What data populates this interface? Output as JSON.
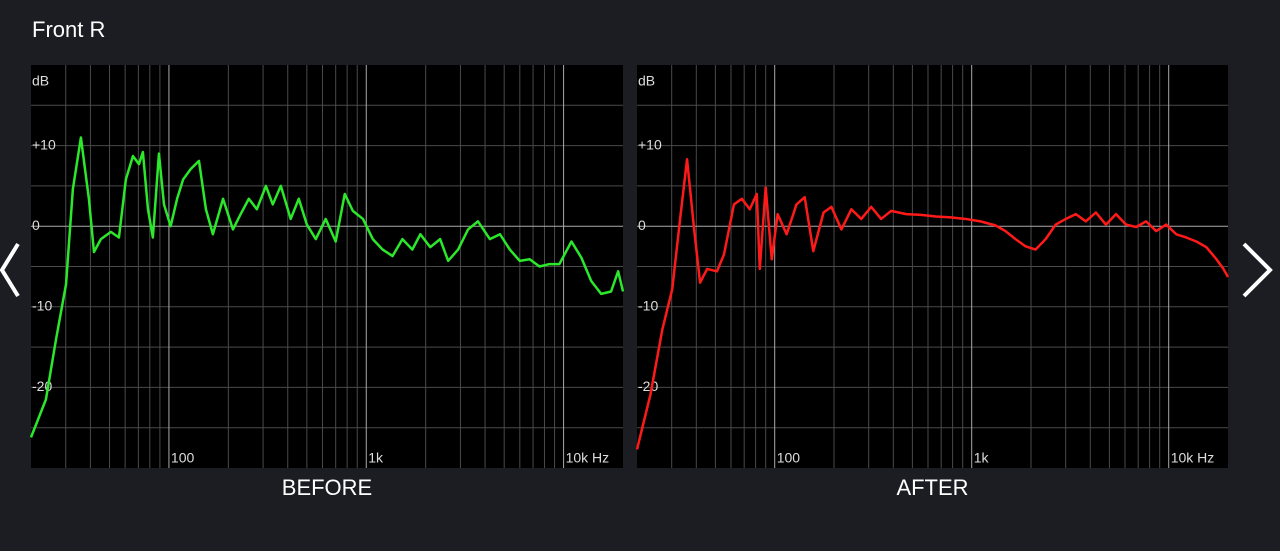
{
  "page_title": "Front R",
  "chart_data": [
    {
      "type": "line",
      "xlabel": "BEFORE",
      "yunit": "dB",
      "xscale": "log",
      "color": "#2be82b",
      "xlim": [
        20,
        20000
      ],
      "ylim": [
        -30,
        20
      ],
      "xticks": [
        100,
        {
          "value": 1000,
          "label": "1k"
        },
        {
          "value": 10000,
          "label": "10k Hz"
        }
      ],
      "xminorticks": [
        30,
        40,
        50,
        60,
        70,
        80,
        90,
        200,
        300,
        400,
        500,
        600,
        700,
        800,
        900,
        2000,
        3000,
        4000,
        5000,
        6000,
        7000,
        8000,
        9000
      ],
      "yticks": [
        {
          "value": 10,
          "label": "+10"
        },
        0,
        -10,
        -20
      ],
      "yminorticks": [
        15,
        5,
        -5,
        -15,
        -25
      ],
      "x": [
        20,
        23.8,
        26.8,
        30.1,
        32.6,
        35.8,
        39.3,
        41.7,
        45.2,
        50.8,
        55.8,
        60.5,
        65.7,
        70.5,
        73.8,
        78.3,
        82.9,
        89,
        94.4,
        102,
        110,
        118,
        129,
        142,
        154,
        167,
        188,
        211,
        231,
        254,
        279,
        310,
        336,
        369,
        414,
        455,
        500,
        555,
        623,
        700,
        778,
        855,
        962,
        1079,
        1210,
        1359,
        1525,
        1712,
        1880,
        2109,
        2367,
        2600,
        2920,
        3280,
        3680,
        4230,
        4760,
        5340,
        5990,
        6730,
        7550,
        8480,
        9520,
        10960,
        12300,
        13800,
        15500,
        17400,
        18900,
        20000
      ],
      "values": [
        -26.2,
        -21.5,
        -14,
        -7.2,
        4.6,
        11,
        3.4,
        -3.2,
        -1.6,
        -0.7,
        -1.4,
        5.8,
        8.7,
        7.7,
        9.2,
        2.1,
        -1.4,
        9,
        2.7,
        0,
        3.4,
        5.8,
        7.1,
        8.1,
        2.1,
        -1,
        3.4,
        -0.4,
        1.5,
        3.4,
        2.1,
        5,
        2.7,
        5,
        0.9,
        3.4,
        0.2,
        -1.6,
        0.9,
        -1.9,
        4,
        1.9,
        0.9,
        -1.6,
        -2.9,
        -3.7,
        -1.6,
        -2.9,
        -1,
        -2.6,
        -1.6,
        -4.3,
        -2.9,
        -0.4,
        0.6,
        -1.6,
        -1,
        -2.9,
        -4.3,
        -4.1,
        -5,
        -4.7,
        -4.7,
        -1.9,
        -3.9,
        -6.8,
        -8.4,
        -8.1,
        -5.6,
        -8.1
      ]
    },
    {
      "type": "line",
      "xlabel": "AFTER",
      "yunit": "dB",
      "xscale": "log",
      "color": "#ff1a1a",
      "xlim": [
        20,
        20000
      ],
      "ylim": [
        -30,
        20
      ],
      "xticks": [
        100,
        {
          "value": 1000,
          "label": "1k"
        },
        {
          "value": 10000,
          "label": "10k Hz"
        }
      ],
      "xminorticks": [
        30,
        40,
        50,
        60,
        70,
        80,
        90,
        200,
        300,
        400,
        500,
        600,
        700,
        800,
        900,
        2000,
        3000,
        4000,
        5000,
        6000,
        7000,
        8000,
        9000
      ],
      "yticks": [
        {
          "value": 10,
          "label": "+10"
        },
        0,
        -10,
        -20
      ],
      "yminorticks": [
        15,
        5,
        -5,
        -15,
        -25
      ],
      "x": [
        20,
        23.4,
        26.9,
        30.2,
        33.1,
        35.9,
        39,
        41.8,
        45.4,
        50.9,
        55.3,
        62.1,
        68.1,
        74.7,
        81.1,
        84,
        90,
        96.6,
        103.5,
        115,
        129,
        142,
        157,
        177,
        194,
        218,
        245,
        275,
        309,
        347,
        390,
        465,
        553,
        658,
        783,
        932,
        1109,
        1318,
        1484,
        1668,
        1877,
        2110,
        2373,
        2670,
        3002,
        3376,
        3797,
        4270,
        4801,
        5400,
        6073,
        6830,
        7680,
        8640,
        9710,
        10920,
        12280,
        13810,
        15530,
        17470,
        18960,
        20000
      ],
      "values": [
        -27.7,
        -20.9,
        -12.8,
        -7.8,
        0.9,
        8.3,
        -0.4,
        -7,
        -5.3,
        -5.6,
        -3.5,
        2.7,
        3.4,
        2.1,
        4,
        -5.3,
        4.8,
        -4.1,
        1.5,
        -1,
        2.7,
        3.6,
        -3.1,
        1.7,
        2.4,
        -0.4,
        2.1,
        0.9,
        2.4,
        0.9,
        1.9,
        1.5,
        1.4,
        1.2,
        1.1,
        0.9,
        0.6,
        0.1,
        -0.6,
        -1.6,
        -2.5,
        -2.9,
        -1.6,
        0.2,
        0.9,
        1.5,
        0.6,
        1.7,
        0.2,
        1.5,
        0.2,
        -0.1,
        0.6,
        -0.6,
        0.2,
        -1,
        -1.4,
        -1.9,
        -2.6,
        -4.1,
        -5.3,
        -6.3
      ]
    }
  ]
}
